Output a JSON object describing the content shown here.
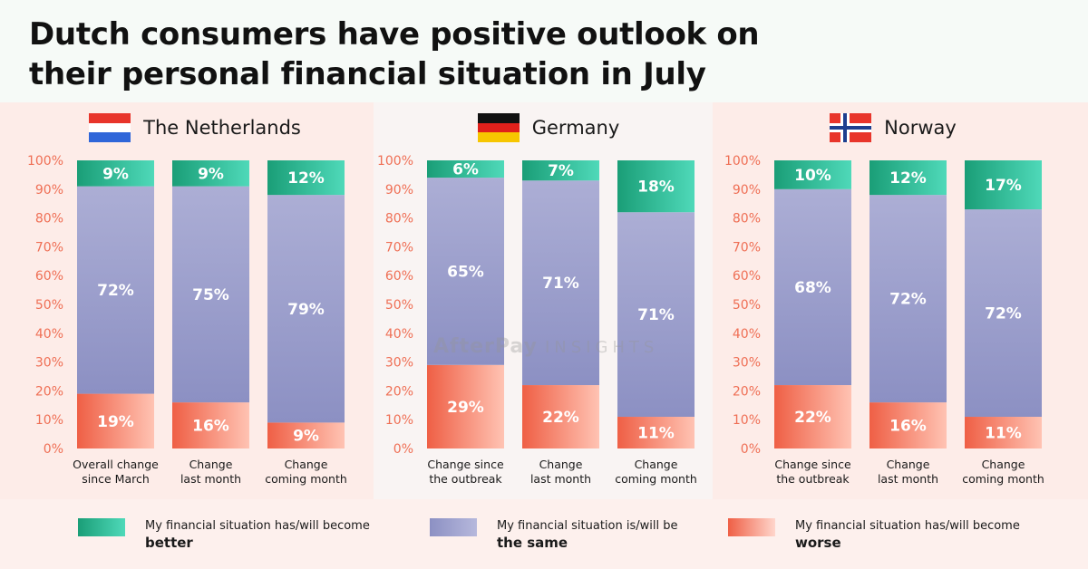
{
  "title": "Dutch consumers have positive outlook on their personal financial situation in July",
  "watermark": {
    "brand": "AfterPay",
    "sub": "INSIGHTS"
  },
  "colors": {
    "better": [
      "#1a9e77",
      "#4fd9b9"
    ],
    "same": [
      "#acaed5",
      "#8c90c3"
    ],
    "worse": [
      "#ef5f45",
      "#ffc3b3"
    ],
    "tick": "#ef6f55"
  },
  "legend": [
    {
      "key": "better",
      "line1": "My financial situation has/will become",
      "line2": "better"
    },
    {
      "key": "same",
      "line1": "My financial situation is/will be",
      "line2": "the same"
    },
    {
      "key": "worse",
      "line1": "My financial situation has/will become",
      "line2": "worse"
    }
  ],
  "chart_data": [
    {
      "type": "bar",
      "stacked": true,
      "title": "The Netherlands",
      "flag": "netherlands-flag",
      "y_ticks": [
        "0%",
        "10%",
        "20%",
        "30%",
        "40%",
        "50%",
        "60%",
        "70%",
        "80%",
        "90%",
        "100%"
      ],
      "ylim": [
        0,
        100
      ],
      "categories": [
        [
          "Overall change",
          "since March"
        ],
        [
          "Change",
          "last month"
        ],
        [
          "Change",
          "coming month"
        ]
      ],
      "series": [
        {
          "key": "worse",
          "values": [
            19,
            16,
            9
          ],
          "labels": [
            "19%",
            "16%",
            "9%"
          ]
        },
        {
          "key": "same",
          "values": [
            72,
            75,
            79
          ],
          "labels": [
            "72%",
            "75%",
            "79%"
          ]
        },
        {
          "key": "better",
          "values": [
            9,
            9,
            12
          ],
          "labels": [
            "9%",
            "9%",
            "12%"
          ]
        }
      ]
    },
    {
      "type": "bar",
      "stacked": true,
      "title": "Germany",
      "flag": "germany-flag",
      "y_ticks": [
        "0%",
        "10%",
        "20%",
        "30%",
        "40%",
        "50%",
        "60%",
        "70%",
        "80%",
        "90%",
        "100%"
      ],
      "ylim": [
        0,
        100
      ],
      "categories": [
        [
          "Change since",
          "the outbreak"
        ],
        [
          "Change",
          "last month"
        ],
        [
          "Change",
          "coming month"
        ]
      ],
      "series": [
        {
          "key": "worse",
          "values": [
            29,
            22,
            11
          ],
          "labels": [
            "29%",
            "22%",
            "11%"
          ]
        },
        {
          "key": "same",
          "values": [
            65,
            71,
            71
          ],
          "labels": [
            "65%",
            "71%",
            "71%"
          ]
        },
        {
          "key": "better",
          "values": [
            6,
            7,
            18
          ],
          "labels": [
            "6%",
            "7%",
            "18%"
          ]
        }
      ]
    },
    {
      "type": "bar",
      "stacked": true,
      "title": "Norway",
      "flag": "norway-flag",
      "y_ticks": [
        "0%",
        "10%",
        "20%",
        "30%",
        "40%",
        "50%",
        "60%",
        "70%",
        "80%",
        "90%",
        "100%"
      ],
      "ylim": [
        0,
        100
      ],
      "categories": [
        [
          "Change since",
          "the outbreak"
        ],
        [
          "Change",
          "last month"
        ],
        [
          "Change",
          "coming month"
        ]
      ],
      "series": [
        {
          "key": "worse",
          "values": [
            22,
            16,
            11
          ],
          "labels": [
            "22%",
            "16%",
            "11%"
          ]
        },
        {
          "key": "same",
          "values": [
            68,
            72,
            72
          ],
          "labels": [
            "68%",
            "72%",
            "72%"
          ]
        },
        {
          "key": "better",
          "values": [
            10,
            12,
            17
          ],
          "labels": [
            "10%",
            "12%",
            "17%"
          ]
        }
      ]
    }
  ]
}
